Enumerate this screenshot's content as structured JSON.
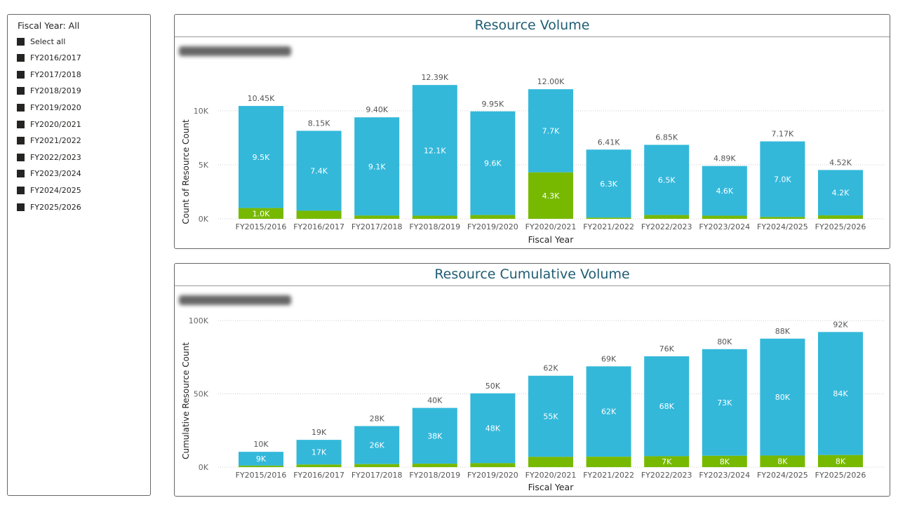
{
  "slicer": {
    "title": "Fiscal Year: All",
    "items": [
      "Select all",
      "FY2016/2017",
      "FY2017/2018",
      "FY2018/2019",
      "FY2019/2020",
      "FY2020/2021",
      "FY2021/2022",
      "FY2022/2023",
      "FY2023/2024",
      "FY2024/2025",
      "FY2025/2026"
    ]
  },
  "colors": {
    "series_a": "#33B8DA",
    "series_b": "#77B900",
    "title": "#1F5C73"
  },
  "chart_data": [
    {
      "type": "bar",
      "stacked": true,
      "title": "Resource Volume",
      "xlabel": "Fiscal Year",
      "ylabel": "Count of Resource Count",
      "ylim": [
        0,
        13000
      ],
      "yticks": [
        "0K",
        "5K",
        "10K"
      ],
      "ytick_values": [
        0,
        5000,
        10000
      ],
      "grid": true,
      "categories": [
        "FY2015/2016",
        "FY2016/2017",
        "FY2017/2018",
        "FY2018/2019",
        "FY2019/2020",
        "FY2020/2021",
        "FY2021/2022",
        "FY2022/2023",
        "FY2023/2024",
        "FY2024/2025",
        "FY2025/2026"
      ],
      "series": [
        {
          "values": [
            1000,
            750,
            300,
            290,
            350,
            4300,
            110,
            350,
            290,
            170,
            320
          ],
          "labels": [
            "1.0K",
            "",
            "",
            "",
            "",
            "4.3K",
            "",
            "",
            "",
            "",
            ""
          ]
        },
        {
          "values": [
            9450,
            7400,
            9100,
            12100,
            9600,
            7700,
            6300,
            6500,
            4600,
            7000,
            4200
          ],
          "labels": [
            "9.5K",
            "7.4K",
            "9.1K",
            "12.1K",
            "9.6K",
            "7.7K",
            "6.3K",
            "6.5K",
            "4.6K",
            "7.0K",
            "4.2K"
          ]
        }
      ],
      "totals": [
        "10.45K",
        "8.15K",
        "9.40K",
        "12.39K",
        "9.95K",
        "12.00K",
        "6.41K",
        "6.85K",
        "4.89K",
        "7.17K",
        "4.52K"
      ]
    },
    {
      "type": "bar",
      "stacked": true,
      "title": "Resource Cumulative Volume",
      "xlabel": "Fiscal Year",
      "ylabel": "Cumulative Resource Count",
      "ylim": [
        0,
        100000
      ],
      "yticks": [
        "0K",
        "50K",
        "100K"
      ],
      "ytick_values": [
        0,
        50000,
        100000
      ],
      "grid": true,
      "categories": [
        "FY2015/2016",
        "FY2016/2017",
        "FY2017/2018",
        "FY2018/2019",
        "FY2019/2020",
        "FY2020/2021",
        "FY2021/2022",
        "FY2022/2023",
        "FY2023/2024",
        "FY2024/2025",
        "FY2025/2026"
      ],
      "series": [
        {
          "values": [
            1000,
            1750,
            2050,
            2340,
            2690,
            6990,
            7100,
            7450,
            7740,
            7910,
            8230
          ],
          "labels": [
            "",
            "",
            "",
            "",
            "",
            "",
            "",
            "7K",
            "8K",
            "8K",
            "8K"
          ]
        },
        {
          "values": [
            9450,
            16850,
            25950,
            38050,
            47650,
            55350,
            61650,
            68150,
            72750,
            79750,
            83950
          ],
          "labels": [
            "9K",
            "17K",
            "26K",
            "38K",
            "48K",
            "55K",
            "62K",
            "68K",
            "73K",
            "80K",
            "84K"
          ]
        }
      ],
      "totals": [
        "10K",
        "19K",
        "28K",
        "40K",
        "50K",
        "62K",
        "69K",
        "76K",
        "80K",
        "88K",
        "92K"
      ]
    }
  ]
}
